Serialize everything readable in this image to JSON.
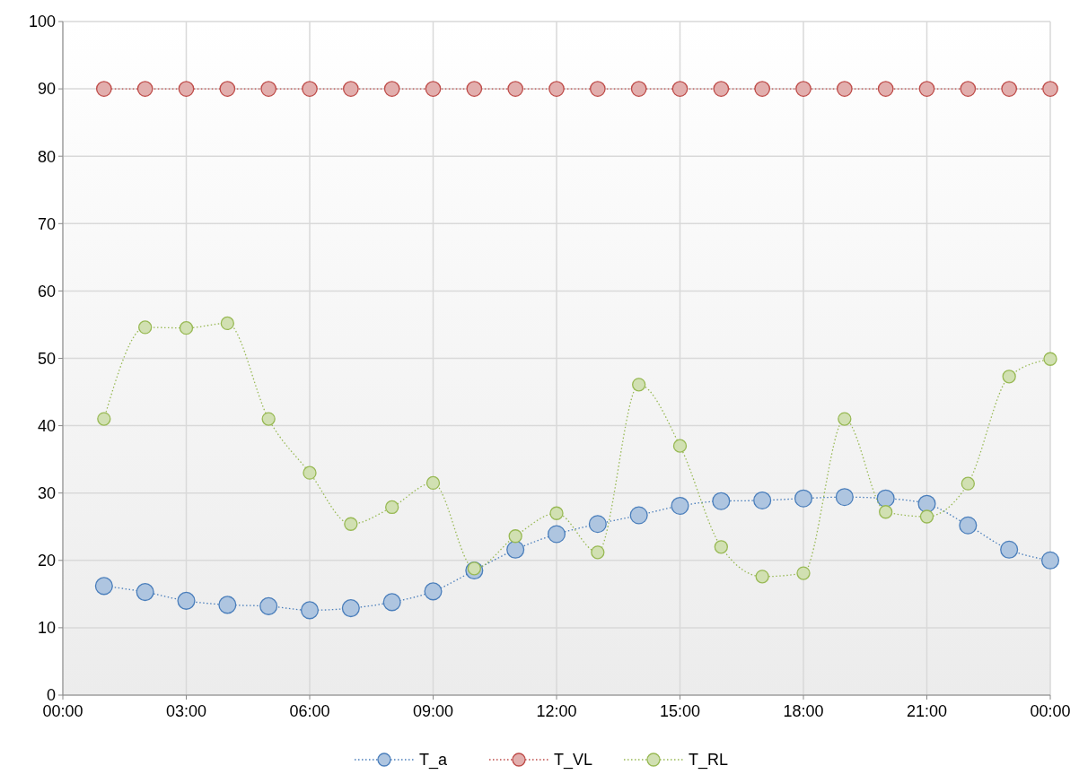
{
  "chart_data": {
    "type": "line",
    "x": [
      1,
      2,
      3,
      4,
      5,
      6,
      7,
      8,
      9,
      10,
      11,
      12,
      13,
      14,
      15,
      16,
      17,
      18,
      19,
      20,
      21,
      22,
      23,
      24
    ],
    "series": [
      {
        "name": "T_a",
        "color": "#4a7ebb",
        "values": [
          16.2,
          15.3,
          14,
          13.4,
          13.2,
          12.6,
          12.9,
          13.8,
          15.4,
          18.5,
          21.6,
          23.9,
          25.4,
          26.7,
          28.1,
          28.8,
          28.9,
          29.2,
          29.4,
          29.2,
          28.4,
          25.2,
          21.6,
          20
        ]
      },
      {
        "name": "T_VL",
        "color": "#be4b48",
        "values": [
          90,
          90,
          90,
          90,
          90,
          90,
          90,
          90,
          90,
          90,
          90,
          90,
          90,
          90,
          90,
          90,
          90,
          90,
          90,
          90,
          90,
          90,
          90,
          90
        ]
      },
      {
        "name": "T_RL",
        "color": "#98b954",
        "values": [
          41,
          54.6,
          54.5,
          55.2,
          41,
          33,
          25.4,
          27.9,
          31.5,
          18.8,
          23.6,
          27,
          21.2,
          46.1,
          37,
          22,
          17.6,
          18.1,
          41,
          27.2,
          26.5,
          31.4,
          47.3,
          49.9
        ]
      }
    ],
    "xlim": [
      0,
      24
    ],
    "xticks": [
      {
        "value": 0,
        "label": "00:00"
      },
      {
        "value": 3,
        "label": "03:00"
      },
      {
        "value": 6,
        "label": "06:00"
      },
      {
        "value": 9,
        "label": "09:00"
      },
      {
        "value": 12,
        "label": "12:00"
      },
      {
        "value": 15,
        "label": "15:00"
      },
      {
        "value": 18,
        "label": "18:00"
      },
      {
        "value": 21,
        "label": "21:00"
      },
      {
        "value": 24,
        "label": "00:00"
      }
    ],
    "ylim": [
      0,
      100
    ],
    "yticks": [
      0,
      10,
      20,
      30,
      40,
      50,
      60,
      70,
      80,
      90,
      100
    ],
    "grid": true,
    "legend": "bottom",
    "marker": "circle",
    "line_style": "dotted"
  }
}
